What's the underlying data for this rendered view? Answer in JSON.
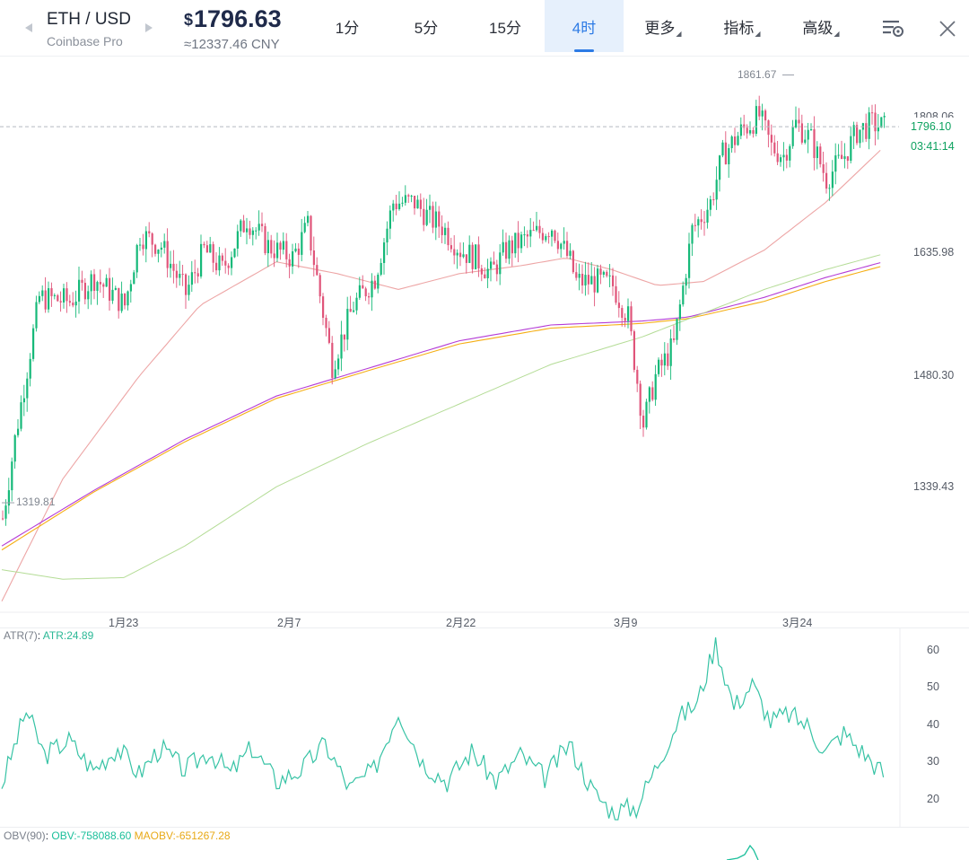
{
  "header": {
    "pair": "ETH / USD",
    "exchange": "Coinbase Pro",
    "currency_symbol": "$",
    "price": "1796.63",
    "price_cny": "≈12337.46 CNY",
    "tabs": [
      {
        "label": "1分",
        "active": false
      },
      {
        "label": "5分",
        "active": false
      },
      {
        "label": "15分",
        "active": false
      },
      {
        "label": "4时",
        "active": true
      },
      {
        "label": "更多",
        "active": false,
        "dropdown": true
      },
      {
        "label": "指标",
        "active": false,
        "dropdown": true
      },
      {
        "label": "高级",
        "active": false,
        "dropdown": true
      }
    ],
    "icons": [
      "chevron-left-icon",
      "chevron-right-icon",
      "chart-settings-icon",
      "close-icon"
    ]
  },
  "colors": {
    "up": "#16b979",
    "down": "#e0557a",
    "ma_short": "#e88f8f",
    "ma_purple": "#b43cd6",
    "ma_yellow": "#f5ae14",
    "ma_long": "#b4dc96",
    "atr": "#37c3a5",
    "obv": "#1bbf9b",
    "maobv": "#f0b31c",
    "accent": "#2d7be5"
  },
  "chart_data": [
    {
      "type": "candlestick",
      "title": "",
      "y_ticks": [
        "1808.06",
        "1635.98",
        "1480.30",
        "1339.43"
      ],
      "x_ticks": [
        "1月23",
        "2月7",
        "2月22",
        "3月9",
        "3月24"
      ],
      "ylim": [
        1180,
        1885
      ],
      "last_price": "1796.10",
      "countdown": "03:41:14",
      "high_label": "1861.67",
      "low_label": "1319.81",
      "path": [
        [
          0,
          1300
        ],
        [
          4,
          1400
        ],
        [
          12,
          1580
        ],
        [
          22,
          1575
        ],
        [
          30,
          1605
        ],
        [
          40,
          1570
        ],
        [
          45,
          1660
        ],
        [
          52,
          1645
        ],
        [
          60,
          1585
        ],
        [
          66,
          1640
        ],
        [
          72,
          1615
        ],
        [
          80,
          1680
        ],
        [
          87,
          1645
        ],
        [
          95,
          1630
        ],
        [
          100,
          1670
        ],
        [
          108,
          1495
        ],
        [
          115,
          1570
        ],
        [
          122,
          1605
        ],
        [
          128,
          1700
        ],
        [
          135,
          1700
        ],
        [
          140,
          1680
        ],
        [
          144,
          1670
        ],
        [
          150,
          1640
        ],
        [
          155,
          1630
        ],
        [
          160,
          1610
        ],
        [
          165,
          1640
        ],
        [
          172,
          1655
        ],
        [
          180,
          1670
        ],
        [
          186,
          1625
        ],
        [
          188,
          1600
        ],
        [
          195,
          1600
        ],
        [
          200,
          1595
        ],
        [
          205,
          1555
        ],
        [
          210,
          1420
        ],
        [
          214,
          1480
        ],
        [
          220,
          1520
        ],
        [
          226,
          1665
        ],
        [
          232,
          1700
        ],
        [
          236,
          1760
        ],
        [
          242,
          1790
        ],
        [
          248,
          1810
        ],
        [
          252,
          1770
        ],
        [
          256,
          1760
        ],
        [
          260,
          1800
        ],
        [
          265,
          1780
        ],
        [
          270,
          1730
        ],
        [
          276,
          1760
        ],
        [
          280,
          1790
        ],
        [
          285,
          1800
        ],
        [
          289,
          1795
        ]
      ],
      "ma_lines": [
        {
          "color_key": "ma_short",
          "points": [
            [
              0,
              1195
            ],
            [
              20,
              1350
            ],
            [
              45,
              1480
            ],
            [
              65,
              1570
            ],
            [
              90,
              1625
            ],
            [
              110,
              1610
            ],
            [
              130,
              1590
            ],
            [
              150,
              1610
            ],
            [
              170,
              1620
            ],
            [
              185,
              1630
            ],
            [
              200,
              1615
            ],
            [
              215,
              1595
            ],
            [
              230,
              1600
            ],
            [
              250,
              1640
            ],
            [
              270,
              1700
            ],
            [
              289,
              1770
            ]
          ]
        },
        {
          "color_key": "ma_purple",
          "points": [
            [
              0,
              1265
            ],
            [
              30,
              1335
            ],
            [
              60,
              1400
            ],
            [
              90,
              1455
            ],
            [
              120,
              1490
            ],
            [
              150,
              1525
            ],
            [
              180,
              1545
            ],
            [
              210,
              1550
            ],
            [
              225,
              1555
            ],
            [
              250,
              1580
            ],
            [
              270,
              1605
            ],
            [
              289,
              1625
            ]
          ]
        },
        {
          "color_key": "ma_yellow",
          "points": [
            [
              0,
              1260
            ],
            [
              30,
              1333
            ],
            [
              60,
              1397
            ],
            [
              90,
              1452
            ],
            [
              120,
              1487
            ],
            [
              150,
              1521
            ],
            [
              180,
              1541
            ],
            [
              210,
              1547
            ],
            [
              225,
              1553
            ],
            [
              250,
              1575
            ],
            [
              270,
              1600
            ],
            [
              289,
              1620
            ]
          ]
        },
        {
          "color_key": "ma_long",
          "points": [
            [
              0,
              1235
            ],
            [
              20,
              1223
            ],
            [
              40,
              1225
            ],
            [
              60,
              1265
            ],
            [
              90,
              1340
            ],
            [
              120,
              1395
            ],
            [
              150,
              1445
            ],
            [
              180,
              1495
            ],
            [
              210,
              1530
            ],
            [
              230,
              1560
            ],
            [
              250,
              1590
            ],
            [
              270,
              1615
            ],
            [
              289,
              1635
            ]
          ]
        }
      ]
    },
    {
      "type": "line",
      "name": "ATR(7)",
      "label": "ATR:24.89",
      "y_ticks": [
        "60",
        "50",
        "40",
        "30",
        "20"
      ],
      "ylim": [
        13,
        66
      ],
      "path": [
        [
          0,
          24
        ],
        [
          8,
          44
        ],
        [
          14,
          32
        ],
        [
          22,
          36
        ],
        [
          30,
          28
        ],
        [
          38,
          34
        ],
        [
          45,
          27
        ],
        [
          52,
          34
        ],
        [
          60,
          28
        ],
        [
          68,
          33
        ],
        [
          75,
          27
        ],
        [
          82,
          34
        ],
        [
          90,
          25
        ],
        [
          98,
          28
        ],
        [
          106,
          35
        ],
        [
          114,
          23
        ],
        [
          122,
          28
        ],
        [
          130,
          44
        ],
        [
          138,
          30
        ],
        [
          146,
          25
        ],
        [
          154,
          33
        ],
        [
          162,
          25
        ],
        [
          170,
          32
        ],
        [
          178,
          26
        ],
        [
          186,
          35
        ],
        [
          194,
          22
        ],
        [
          200,
          17
        ],
        [
          208,
          18
        ],
        [
          214,
          28
        ],
        [
          222,
          42
        ],
        [
          228,
          46
        ],
        [
          234,
          62
        ],
        [
          240,
          45
        ],
        [
          246,
          51
        ],
        [
          252,
          41
        ],
        [
          258,
          43
        ],
        [
          264,
          40
        ],
        [
          270,
          33
        ],
        [
          276,
          38
        ],
        [
          282,
          33
        ],
        [
          289,
          27
        ]
      ]
    },
    {
      "type": "line",
      "name": "OBV(90)",
      "labels": [
        "OBV:-758088.60",
        "MAOBV:-651267.28"
      ]
    }
  ]
}
